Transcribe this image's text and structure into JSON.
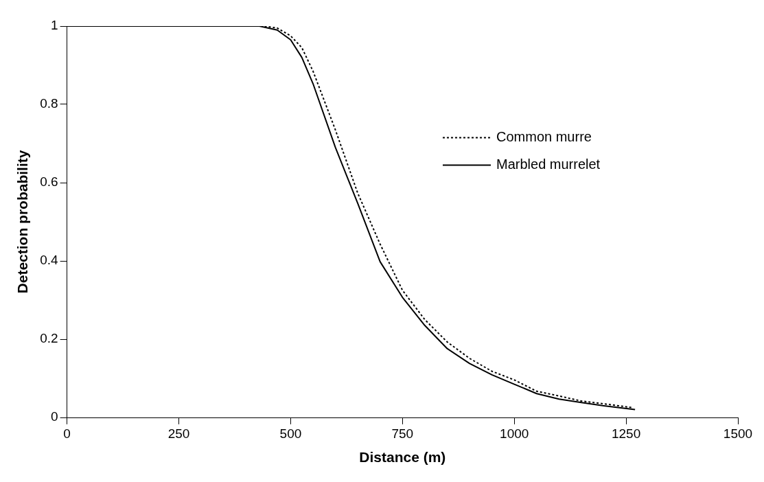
{
  "chart_data": {
    "type": "line",
    "xlabel": "Distance (m)",
    "ylabel": "Detection probability",
    "xlim": [
      0,
      1500
    ],
    "xticks": [
      0,
      250,
      500,
      750,
      1000,
      1250,
      1500
    ],
    "ylim": [
      0,
      1
    ],
    "yticks": [
      0,
      0.2,
      0.4,
      0.6,
      0.8,
      1
    ],
    "grid": false,
    "legend": "right",
    "marker": "none",
    "series": [
      {
        "name": "Common murre",
        "color": "#000000",
        "line_style": "dotted",
        "x": [
          0,
          440,
          470,
          500,
          525,
          550,
          600,
          650,
          700,
          750,
          800,
          850,
          900,
          950,
          1000,
          1050,
          1100,
          1150,
          1200,
          1265
        ],
        "values": [
          1,
          1,
          0.995,
          0.975,
          0.945,
          0.885,
          0.735,
          0.573,
          0.443,
          0.325,
          0.25,
          0.193,
          0.151,
          0.118,
          0.096,
          0.067,
          0.055,
          0.042,
          0.035,
          0.025
        ]
      },
      {
        "name": "Marbled murrelet",
        "color": "#000000",
        "line_style": "solid",
        "x": [
          0,
          430,
          470,
          500,
          525,
          550,
          600,
          650,
          700,
          750,
          800,
          850,
          900,
          950,
          1000,
          1050,
          1100,
          1150,
          1200,
          1270
        ],
        "values": [
          1,
          1,
          0.99,
          0.965,
          0.92,
          0.853,
          0.69,
          0.547,
          0.398,
          0.307,
          0.235,
          0.176,
          0.138,
          0.109,
          0.085,
          0.061,
          0.047,
          0.038,
          0.03,
          0.02
        ]
      }
    ]
  }
}
